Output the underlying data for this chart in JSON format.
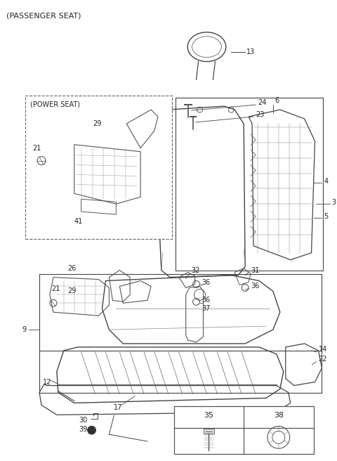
{
  "title": "(PASSENGER SEAT)",
  "bg_color": "#ffffff",
  "lc": "#444444",
  "fig_w": 4.8,
  "fig_h": 6.56,
  "dpi": 100,
  "label_fs": 7,
  "title_fs": 8
}
